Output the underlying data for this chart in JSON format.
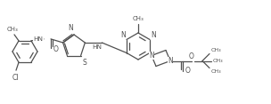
{
  "line_color": "#505050",
  "line_width": 0.9,
  "font_size": 5.5,
  "fig_width": 3.04,
  "fig_height": 1.17,
  "dpi": 100,
  "xlim": [
    0,
    304
  ],
  "ylim": [
    0,
    117
  ]
}
